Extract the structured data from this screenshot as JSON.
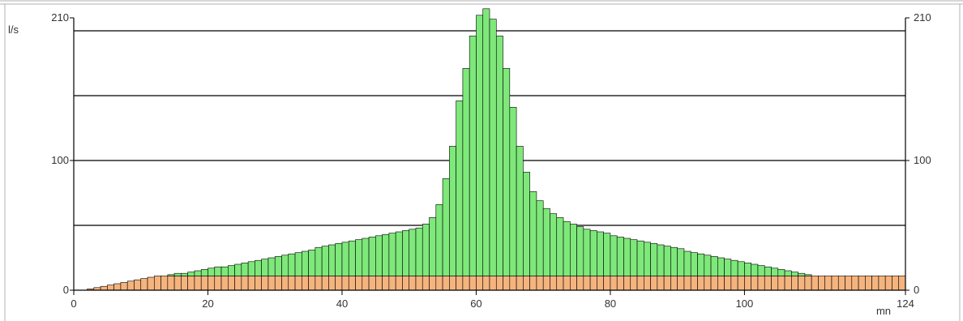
{
  "chart_data": {
    "type": "bar",
    "stacked": true,
    "ylabel": "l/s",
    "xlabel": "mn",
    "xlim": [
      0,
      124
    ],
    "ylim": [
      0,
      210
    ],
    "y_ticks_left": [
      "0",
      "100",
      "210"
    ],
    "y_ticks_right": [
      "0",
      "100",
      "210"
    ],
    "x_ticks": [
      "0",
      "20",
      "40",
      "60",
      "80",
      "100",
      "124"
    ],
    "grid": "horizontal",
    "bin_width_mn": 1,
    "colors": {
      "base": "#f5b47e",
      "runoff": "#7ee87a",
      "outline": "#000000",
      "grid": "#000000"
    },
    "series": [
      {
        "name": "",
        "color": "#f5b47e",
        "values": [
          0,
          0,
          1,
          2,
          3,
          4,
          5,
          6,
          7,
          8,
          9,
          10,
          11,
          11,
          11,
          11,
          11,
          11,
          11,
          11,
          11,
          11,
          11,
          11,
          11,
          11,
          11,
          11,
          11,
          11,
          11,
          11,
          11,
          11,
          11,
          11,
          11,
          11,
          11,
          11,
          11,
          11,
          11,
          11,
          11,
          11,
          11,
          11,
          11,
          11,
          11,
          11,
          11,
          11,
          11,
          11,
          11,
          11,
          11,
          11,
          11,
          11,
          11,
          11,
          11,
          11,
          11,
          11,
          11,
          11,
          11,
          11,
          11,
          11,
          11,
          11,
          11,
          11,
          11,
          11,
          11,
          11,
          11,
          11,
          11,
          11,
          11,
          11,
          11,
          11,
          11,
          11,
          11,
          11,
          11,
          11,
          11,
          11,
          11,
          11,
          11,
          11,
          11,
          11,
          11,
          11,
          11,
          11,
          11,
          11,
          11,
          11,
          11,
          11,
          11,
          11,
          11,
          11,
          11,
          11,
          11,
          11,
          11,
          11
        ]
      },
      {
        "name": "",
        "color": "#7ee87a",
        "values": [
          0,
          0,
          0,
          0,
          0,
          0,
          0,
          0,
          0,
          0,
          0,
          0,
          0,
          0,
          1,
          2,
          2,
          3,
          4,
          5,
          6,
          7,
          7,
          8,
          9,
          10,
          11,
          12,
          13,
          14,
          15,
          16,
          17,
          18,
          19,
          20,
          22,
          23,
          24,
          25,
          26,
          27,
          28,
          29,
          30,
          31,
          32,
          33,
          34,
          35,
          36,
          37,
          40,
          45,
          55,
          75,
          100,
          135,
          160,
          185,
          201,
          206,
          198,
          185,
          160,
          130,
          100,
          80,
          65,
          58,
          52,
          48,
          45,
          42,
          40,
          38,
          36,
          35,
          34,
          33,
          31,
          30,
          29,
          28,
          27,
          26,
          25,
          24,
          23,
          22,
          21,
          19,
          18,
          17,
          16,
          15,
          14,
          13,
          12,
          11,
          10,
          9,
          8,
          7,
          6,
          5,
          4,
          3,
          2,
          1,
          0,
          0,
          0,
          0,
          0,
          0,
          0,
          0,
          0,
          0,
          0,
          0,
          0,
          0
        ]
      }
    ]
  }
}
